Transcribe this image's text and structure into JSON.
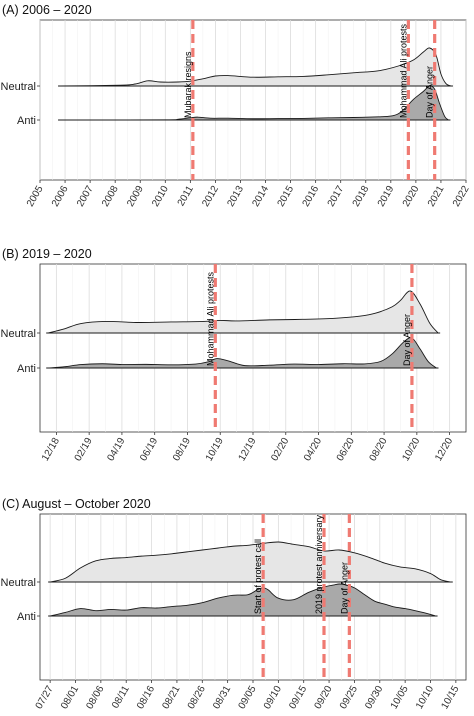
{
  "chart_data": [
    {
      "type": "area",
      "title": "(A) 2006 – 2020",
      "rows": [
        "Neutral",
        "Anti"
      ],
      "x_unit": "year",
      "xlim": [
        2005,
        2022
      ],
      "ticks": [
        "2005",
        "2006",
        "2007",
        "2008",
        "2009",
        "2010",
        "2011",
        "2012",
        "2013",
        "2014",
        "2015",
        "2016",
        "2017",
        "2018",
        "2019",
        "2020",
        "2021",
        "2022"
      ],
      "events": [
        {
          "label": "Mubarak resigns",
          "x": 2011.1
        },
        {
          "label": "Mohammad Ali protests",
          "x": 2019.7
        },
        {
          "label": "Day of Anger",
          "x": 2020.75
        }
      ],
      "series": [
        {
          "name": "Neutral",
          "x": [
            2005.8,
            2008.2,
            2008.8,
            2009.3,
            2009.8,
            2010.5,
            2011.0,
            2011.5,
            2012.0,
            2012.5,
            2013.5,
            2014.5,
            2015.5,
            2016.5,
            2017.5,
            2018.5,
            2019.3,
            2019.9,
            2020.3,
            2020.55,
            2020.8,
            2021.0,
            2021.2,
            2021.4
          ],
          "y": [
            0.0,
            0.02,
            0.05,
            0.13,
            0.1,
            0.1,
            0.12,
            0.18,
            0.25,
            0.26,
            0.22,
            0.23,
            0.24,
            0.28,
            0.33,
            0.38,
            0.5,
            0.65,
            0.85,
            0.95,
            0.78,
            0.3,
            0.06,
            0.0
          ]
        },
        {
          "name": "Anti",
          "x": [
            2005.8,
            2010.0,
            2010.5,
            2011.0,
            2011.3,
            2011.8,
            2012.5,
            2013.5,
            2014.5,
            2015.5,
            2016.5,
            2017.5,
            2018.5,
            2019.0,
            2019.3,
            2019.6,
            2019.9,
            2020.3,
            2020.55,
            2020.75,
            2020.95,
            2021.15,
            2021.3
          ],
          "y": [
            0.0,
            0.01,
            0.04,
            0.12,
            0.16,
            0.1,
            0.1,
            0.07,
            0.08,
            0.09,
            0.12,
            0.14,
            0.18,
            0.22,
            0.35,
            0.7,
            1.15,
            1.6,
            1.9,
            1.72,
            0.9,
            0.2,
            0.0
          ]
        }
      ]
    },
    {
      "type": "area",
      "title": "(B) 2019 – 2020",
      "rows": [
        "Neutral",
        "Anti"
      ],
      "x_unit": "month index (0 = 12/18)",
      "xlim": [
        -1,
        25
      ],
      "ticks": [
        "12/18",
        "02/19",
        "04/19",
        "06/19",
        "08/19",
        "10/19",
        "12/19",
        "02/20",
        "04/20",
        "06/20",
        "08/20",
        "10/20",
        "12/20"
      ],
      "events": [
        {
          "label": "Mohammad Ali protests",
          "x": 9.7
        },
        {
          "label": "Day of Anger",
          "x": 21.7
        }
      ],
      "series": [
        {
          "name": "Neutral",
          "x": [
            -0.5,
            0.5,
            1.5,
            3.0,
            5.0,
            7.0,
            9.0,
            10.0,
            11.0,
            13.0,
            15.0,
            17.0,
            18.5,
            19.5,
            20.5,
            21.0,
            21.6,
            22.2,
            22.8,
            23.3
          ],
          "y": [
            0.0,
            0.08,
            0.18,
            0.22,
            0.2,
            0.21,
            0.22,
            0.24,
            0.23,
            0.25,
            0.26,
            0.28,
            0.32,
            0.38,
            0.5,
            0.62,
            0.8,
            0.55,
            0.18,
            0.0
          ]
        },
        {
          "name": "Anti",
          "x": [
            -0.5,
            0.5,
            1.5,
            2.8,
            4.0,
            5.5,
            7.0,
            8.5,
            9.3,
            9.8,
            10.5,
            11.5,
            13.0,
            14.5,
            16.0,
            17.5,
            18.8,
            19.8,
            20.5,
            21.2,
            21.7,
            22.2,
            22.7,
            23.2
          ],
          "y": [
            0.0,
            0.08,
            0.22,
            0.27,
            0.22,
            0.23,
            0.2,
            0.25,
            0.4,
            0.6,
            0.45,
            0.15,
            0.18,
            0.25,
            0.22,
            0.27,
            0.26,
            0.42,
            0.9,
            1.65,
            1.9,
            1.2,
            0.4,
            0.0
          ]
        }
      ]
    },
    {
      "type": "area",
      "title": "(C) August – October 2020",
      "rows": [
        "Neutral",
        "Anti"
      ],
      "x_unit": "day index (0 = 07/27)",
      "xlim": [
        -2,
        82
      ],
      "ticks": [
        "07/27",
        "08/01",
        "08/06",
        "08/11",
        "08/16",
        "08/21",
        "08/26",
        "08/31",
        "09/05",
        "09/10",
        "09/15",
        "09/20",
        "09/25",
        "09/30",
        "10/05",
        "10/10",
        "10/15"
      ],
      "events": [
        {
          "label": "Start of protest call",
          "x": 42
        },
        {
          "label": "2019 protest anniversary",
          "x": 54
        },
        {
          "label": "Day of Anger",
          "x": 59
        }
      ],
      "series": [
        {
          "name": "Neutral",
          "x": [
            0,
            3,
            6,
            9,
            12,
            15,
            18,
            21,
            24,
            27,
            30,
            33,
            36,
            39,
            42,
            45,
            48,
            51,
            54,
            57,
            60,
            63,
            66,
            69,
            72,
            75,
            77,
            79
          ],
          "y": [
            0.0,
            0.08,
            0.3,
            0.45,
            0.5,
            0.52,
            0.55,
            0.57,
            0.6,
            0.64,
            0.68,
            0.72,
            0.76,
            0.78,
            0.82,
            0.85,
            0.8,
            0.75,
            0.66,
            0.68,
            0.62,
            0.52,
            0.4,
            0.32,
            0.28,
            0.18,
            0.05,
            0.0
          ]
        },
        {
          "name": "Anti",
          "x": [
            0,
            3,
            6,
            9,
            12,
            15,
            18,
            21,
            24,
            27,
            30,
            33,
            36,
            39,
            41,
            42,
            43,
            45,
            48,
            51,
            54,
            56,
            57,
            58,
            60,
            62,
            64,
            66,
            68,
            70,
            72,
            74,
            76
          ],
          "y": [
            0.0,
            0.12,
            0.25,
            0.18,
            0.22,
            0.2,
            0.28,
            0.27,
            0.32,
            0.36,
            0.45,
            0.6,
            0.7,
            0.72,
            0.9,
            0.95,
            0.88,
            0.6,
            0.55,
            0.8,
            0.98,
            1.05,
            1.08,
            1.06,
            0.95,
            0.72,
            0.5,
            0.4,
            0.3,
            0.25,
            0.18,
            0.1,
            0.0
          ]
        }
      ]
    }
  ]
}
